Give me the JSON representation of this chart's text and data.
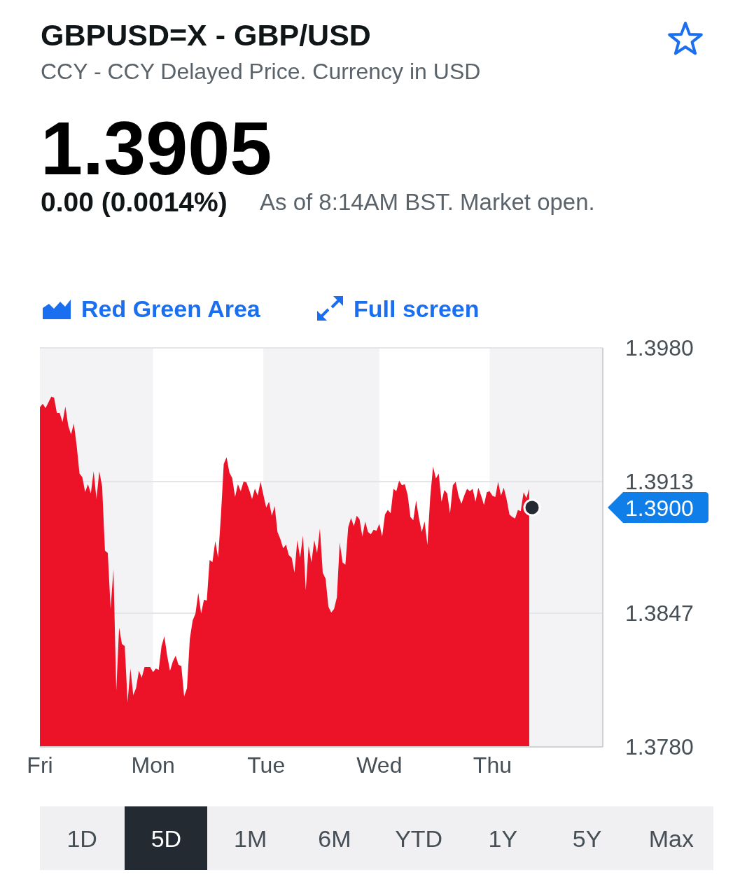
{
  "chart_data": {
    "type": "area",
    "title": "GBPUSD=X - GBP/USD",
    "subtitle": "CCY - CCY Delayed Price. Currency in USD",
    "annotations": [
      "1.3905",
      "0.00 (0.0014%)",
      "As of 8:14AM BST. Market open.",
      "Red Green Area",
      "Full screen",
      "1.3900",
      "1D",
      "5D",
      "1M",
      "6M",
      "YTD",
      "1Y",
      "5Y",
      "Max"
    ],
    "categories": [
      "Fri",
      null,
      null,
      null,
      null,
      null,
      null,
      null,
      null,
      null,
      null,
      null,
      null,
      null,
      null,
      null,
      null,
      null,
      null,
      null,
      null,
      null,
      null,
      null,
      null,
      null,
      null,
      null,
      null,
      null,
      null,
      null,
      null,
      null,
      null,
      null,
      null,
      null,
      null,
      null,
      "Mon",
      null,
      null,
      null,
      null,
      null,
      null,
      null,
      null,
      null,
      null,
      null,
      null,
      null,
      null,
      null,
      null,
      null,
      null,
      null,
      null,
      null,
      null,
      null,
      null,
      null,
      null,
      null,
      null,
      null,
      null,
      null,
      null,
      null,
      null,
      null,
      null,
      null,
      null,
      null,
      "Tue",
      null,
      null,
      null,
      null,
      null,
      null,
      null,
      null,
      null,
      null,
      null,
      null,
      null,
      null,
      null,
      null,
      null,
      null,
      null,
      null,
      null,
      null,
      null,
      null,
      null,
      null,
      null,
      null,
      null,
      null,
      null,
      null,
      null,
      null,
      null,
      null,
      null,
      null,
      null,
      "Wed",
      null,
      null,
      null,
      null,
      null,
      null,
      null,
      null,
      null,
      null,
      null,
      null,
      null,
      null,
      null,
      null,
      null,
      null,
      null,
      null,
      null,
      null,
      null,
      null,
      null,
      null,
      null,
      null,
      null,
      null,
      null,
      null,
      null,
      null,
      null,
      null,
      null,
      null,
      null,
      "Thu",
      null,
      null,
      null,
      null,
      null,
      null,
      null,
      null,
      null,
      null,
      null,
      null,
      null,
      null,
      null,
      null,
      null,
      null,
      null,
      null,
      null,
      null,
      null,
      null,
      null,
      null,
      null,
      null,
      null,
      null,
      null,
      null,
      null,
      null,
      null,
      null,
      null,
      null,
      null
    ],
    "ylim": [
      1.378,
      1.398
    ],
    "yticks": [
      {
        "value": 1.378,
        "label": "1.3780"
      },
      1.3847,
      1.3913,
      {
        "value": 1.398,
        "label": "1.3980"
      }
    ],
    "grid": "y",
    "bands": [
      {
        "axis": "x",
        "from": "Mon",
        "to": "Tue",
        "color": "#ffffff"
      },
      {
        "axis": "x",
        "from": "Wed",
        "to": "Thu",
        "color": "#ffffff"
      }
    ],
    "series": [
      {
        "color": "#ec1228",
        "values": [
          1.39503,
          1.3952,
          1.39498,
          1.39526,
          1.39555,
          1.39551,
          1.39474,
          1.39474,
          1.39428,
          1.39506,
          1.39411,
          1.39366,
          1.39421,
          1.3931,
          1.3917,
          1.39152,
          1.39077,
          1.39117,
          1.3907,
          1.39182,
          1.39042,
          1.39182,
          1.39105,
          1.38784,
          1.38772,
          1.38491,
          1.38691,
          1.38082,
          1.38398,
          1.38316,
          1.38305,
          1.38025,
          1.38193,
          1.3806,
          1.38095,
          1.38182,
          1.38147,
          1.382,
          1.382,
          1.382,
          1.38175,
          1.38193,
          1.38186,
          1.38305,
          1.38354,
          1.38256,
          1.38182,
          1.38228,
          1.38257,
          1.38211,
          1.38205,
          1.38053,
          1.38095,
          1.3834,
          1.38433,
          1.38468,
          1.38573,
          1.38468,
          1.38538,
          1.38533,
          1.38737,
          1.38726,
          1.38832,
          1.38748,
          1.38959,
          1.39218,
          1.39252,
          1.39175,
          1.39147,
          1.39053,
          1.39117,
          1.39082,
          1.3913,
          1.39126,
          1.39088,
          1.39042,
          1.39095,
          1.3906,
          1.3913,
          1.39064,
          1.39,
          1.39029,
          1.38959,
          1.39007,
          1.38877,
          1.38842,
          1.38796,
          1.38814,
          1.38761,
          1.38748,
          1.38674,
          1.38836,
          1.38748,
          1.3886,
          1.38585,
          1.38807,
          1.38725,
          1.38836,
          1.38772,
          1.38895,
          1.38673,
          1.38643,
          1.38503,
          1.38474,
          1.38491,
          1.3855,
          1.38825,
          1.38725,
          1.38713,
          1.38901,
          1.38947,
          1.38906,
          1.38959,
          1.38941,
          1.38854,
          1.3893,
          1.38877,
          1.38866,
          1.38889,
          1.38883,
          1.38918,
          1.38854,
          1.38965,
          1.38988,
          1.38971,
          1.39094,
          1.39082,
          1.39134,
          1.39111,
          1.39117,
          1.39064,
          1.38953,
          1.38936,
          1.39035,
          1.38947,
          1.38877,
          1.3893,
          1.38813,
          1.39053,
          1.39205,
          1.39146,
          1.3917,
          1.39029,
          1.39088,
          1.3907,
          1.38971,
          1.39111,
          1.39129,
          1.39059,
          1.39018,
          1.39059,
          1.39094,
          1.39082,
          1.39094,
          1.39029,
          1.39099,
          1.39059,
          1.39012,
          1.39076,
          1.39082,
          1.39059,
          1.39053,
          1.39129,
          1.39059,
          1.39099,
          1.39041,
          1.38965,
          1.38953,
          1.38945,
          1.38988,
          1.38982,
          1.39076,
          1.39047,
          1.39094,
          null,
          null,
          null,
          null,
          null,
          null,
          null,
          null,
          null,
          null,
          null,
          null,
          null,
          null,
          null,
          null,
          null,
          null,
          null,
          null,
          null,
          null,
          null,
          null,
          null,
          null
        ]
      },
      {
        "type": "scatter",
        "color": "#232a31",
        "values": [
          null,
          null,
          null,
          null,
          null,
          null,
          null,
          null,
          null,
          null,
          null,
          null,
          null,
          null,
          null,
          null,
          null,
          null,
          null,
          null,
          null,
          null,
          null,
          null,
          null,
          null,
          null,
          null,
          null,
          null,
          null,
          null,
          null,
          null,
          null,
          null,
          null,
          null,
          null,
          null,
          null,
          null,
          null,
          null,
          null,
          null,
          null,
          null,
          null,
          null,
          null,
          null,
          null,
          null,
          null,
          null,
          null,
          null,
          null,
          null,
          null,
          null,
          null,
          null,
          null,
          null,
          null,
          null,
          null,
          null,
          null,
          null,
          null,
          null,
          null,
          null,
          null,
          null,
          null,
          null,
          null,
          null,
          null,
          null,
          null,
          null,
          null,
          null,
          null,
          null,
          null,
          null,
          null,
          null,
          null,
          null,
          null,
          null,
          null,
          null,
          null,
          null,
          null,
          null,
          null,
          null,
          null,
          null,
          null,
          null,
          null,
          null,
          null,
          null,
          null,
          null,
          null,
          null,
          null,
          null,
          null,
          null,
          null,
          null,
          null,
          null,
          null,
          null,
          null,
          null,
          null,
          null,
          null,
          null,
          null,
          null,
          null,
          null,
          null,
          null,
          null,
          null,
          null,
          null,
          null,
          null,
          null,
          null,
          null,
          null,
          null,
          null,
          null,
          null,
          null,
          null,
          null,
          null,
          null,
          null,
          null,
          null,
          null,
          null,
          null,
          null,
          null,
          null,
          null,
          null,
          null,
          null,
          null,
          null,
          1.39,
          null,
          null,
          null,
          null,
          null,
          null,
          null,
          null,
          null,
          null,
          null,
          null,
          null,
          null,
          null,
          null,
          null,
          null,
          null,
          null,
          null,
          null,
          null,
          null,
          null
        ]
      }
    ]
  }
}
